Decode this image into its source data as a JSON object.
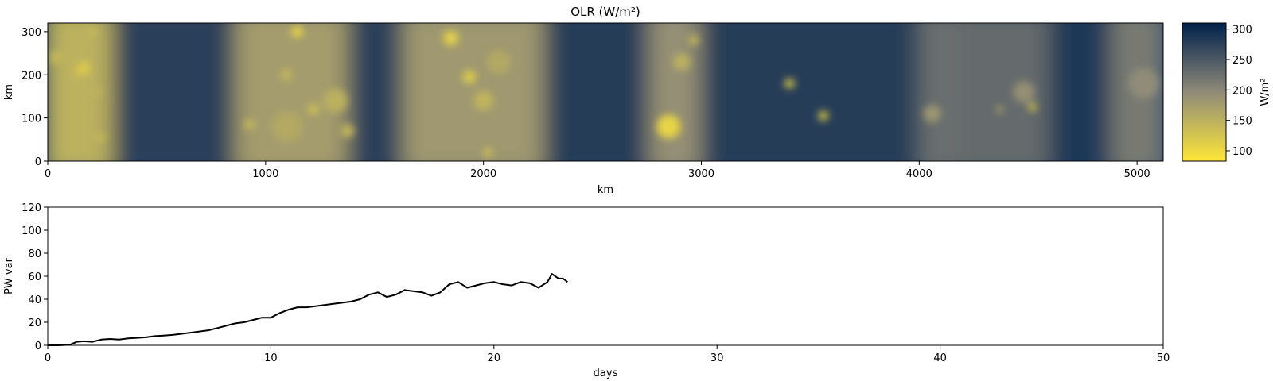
{
  "chart_data": [
    {
      "type": "heatmap",
      "title": "OLR (W/m²)",
      "xlabel": "km",
      "ylabel": "km",
      "xlim": [
        0,
        5120
      ],
      "ylim": [
        0,
        320
      ],
      "xticks": [
        0,
        1000,
        2000,
        3000,
        4000,
        5000
      ],
      "yticks": [
        0,
        100,
        200,
        300
      ],
      "xtick_labels": [
        "0",
        "1000",
        "2000",
        "3000",
        "4000",
        "5000"
      ],
      "ytick_labels": [
        "0",
        "100",
        "200",
        "300"
      ],
      "colorbar": {
        "label": "W/m²",
        "range": [
          83,
          310
        ],
        "ticks": [
          100,
          150,
          200,
          250,
          300
        ],
        "tick_labels": [
          "100",
          "150",
          "200",
          "250",
          "300"
        ],
        "low_color": "#fde738",
        "mid_color": "#8f8b79",
        "high_color": "#00204c"
      },
      "background_bands": [
        {
          "x": [
            0,
            320
          ],
          "y": 150
        },
        {
          "x": [
            320,
            880
          ],
          "y": 275
        },
        {
          "x": [
            880,
            1400
          ],
          "y": 175
        },
        {
          "x": [
            1400,
            1650
          ],
          "y": 275
        },
        {
          "x": [
            1650,
            2300
          ],
          "y": 180
        },
        {
          "x": [
            2300,
            2780
          ],
          "y": 280
        },
        {
          "x": [
            2780,
            3020
          ],
          "y": 190
        },
        {
          "x": [
            3020,
            4020
          ],
          "y": 280
        },
        {
          "x": [
            4020,
            4200
          ],
          "y": 225
        },
        {
          "x": [
            4200,
            4620
          ],
          "y": 230
        },
        {
          "x": [
            4620,
            4900
          ],
          "y": 285
        },
        {
          "x": [
            4900,
            5120
          ],
          "y": 215
        }
      ],
      "convective_cells": [
        {
          "x": 40,
          "y": 240,
          "r": 30,
          "value": 140
        },
        {
          "x": 165,
          "y": 215,
          "r": 30,
          "value": 115
        },
        {
          "x": 135,
          "y": 205,
          "r": 15,
          "value": 125
        },
        {
          "x": 210,
          "y": 300,
          "r": 15,
          "value": 130
        },
        {
          "x": 230,
          "y": 160,
          "r": 20,
          "value": 145
        },
        {
          "x": 245,
          "y": 55,
          "r": 15,
          "value": 120
        },
        {
          "x": 1145,
          "y": 300,
          "r": 25,
          "value": 100
        },
        {
          "x": 1095,
          "y": 200,
          "r": 25,
          "value": 140
        },
        {
          "x": 1100,
          "y": 80,
          "r": 70,
          "value": 160
        },
        {
          "x": 1320,
          "y": 140,
          "r": 55,
          "value": 150
        },
        {
          "x": 1220,
          "y": 120,
          "r": 25,
          "value": 130
        },
        {
          "x": 925,
          "y": 85,
          "r": 20,
          "value": 125
        },
        {
          "x": 1375,
          "y": 70,
          "r": 30,
          "value": 140
        },
        {
          "x": 1850,
          "y": 285,
          "r": 35,
          "value": 110
        },
        {
          "x": 1935,
          "y": 195,
          "r": 30,
          "value": 115
        },
        {
          "x": 2000,
          "y": 140,
          "r": 45,
          "value": 145
        },
        {
          "x": 2070,
          "y": 230,
          "r": 55,
          "value": 160
        },
        {
          "x": 2020,
          "y": 20,
          "r": 20,
          "value": 125
        },
        {
          "x": 2850,
          "y": 80,
          "r": 55,
          "value": 105
        },
        {
          "x": 2910,
          "y": 230,
          "r": 40,
          "value": 150
        },
        {
          "x": 2965,
          "y": 280,
          "r": 22,
          "value": 130
        },
        {
          "x": 3405,
          "y": 180,
          "r": 22,
          "value": 110
        },
        {
          "x": 3560,
          "y": 105,
          "r": 22,
          "value": 105
        },
        {
          "x": 4060,
          "y": 110,
          "r": 40,
          "value": 180
        },
        {
          "x": 4520,
          "y": 125,
          "r": 18,
          "value": 110
        },
        {
          "x": 4480,
          "y": 160,
          "r": 50,
          "value": 190
        },
        {
          "x": 4370,
          "y": 120,
          "r": 15,
          "value": 150
        },
        {
          "x": 5030,
          "y": 180,
          "r": 70,
          "value": 195
        }
      ]
    },
    {
      "type": "line",
      "xlabel": "days",
      "ylabel": "PW var",
      "xlim": [
        0,
        50
      ],
      "ylim": [
        0,
        120
      ],
      "xticks": [
        0,
        10,
        20,
        30,
        40,
        50
      ],
      "yticks": [
        0,
        20,
        40,
        60,
        80,
        100,
        120
      ],
      "xtick_labels": [
        "0",
        "10",
        "20",
        "30",
        "40",
        "50"
      ],
      "ytick_labels": [
        "0",
        "20",
        "40",
        "60",
        "80",
        "100",
        "120"
      ],
      "line_color": "#000000",
      "x": [
        0,
        0.5,
        1.0,
        1.3,
        1.6,
        2.0,
        2.4,
        2.8,
        3.2,
        3.6,
        4.0,
        4.4,
        4.8,
        5.2,
        5.6,
        6.0,
        6.4,
        6.8,
        7.2,
        7.6,
        8.0,
        8.4,
        8.8,
        9.2,
        9.6,
        10.0,
        10.4,
        10.8,
        11.2,
        11.6,
        12.0,
        12.4,
        12.8,
        13.2,
        13.6,
        14.0,
        14.4,
        14.8,
        15.2,
        15.6,
        16.0,
        16.4,
        16.8,
        17.2,
        17.6,
        18.0,
        18.4,
        18.8,
        19.2,
        19.6,
        20.0,
        20.4,
        20.8,
        21.2,
        21.6,
        22.0,
        22.4,
        22.6,
        22.9,
        23.1,
        23.3
      ],
      "y": [
        0,
        0,
        0.5,
        3,
        3.5,
        3,
        5,
        5.5,
        5,
        6,
        6.5,
        7,
        8,
        8.5,
        9,
        10,
        11,
        12,
        13,
        15,
        17,
        19,
        20,
        22,
        24,
        24,
        28,
        31,
        33,
        33,
        34,
        35,
        36,
        37,
        38,
        40,
        44,
        46,
        42,
        44,
        48,
        47,
        46,
        43,
        46,
        53,
        55,
        50,
        52,
        54,
        55,
        53,
        52,
        55,
        54,
        50,
        55,
        62,
        58,
        58,
        55
      ]
    }
  ]
}
